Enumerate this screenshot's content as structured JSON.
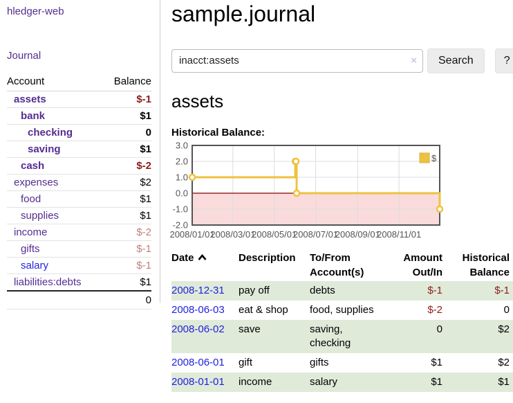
{
  "chart_data": {
    "type": "line",
    "title": "Historical Balance:",
    "step": true,
    "series": [
      {
        "name": "$",
        "color": "#edc240",
        "points": [
          [
            "2008-01-01",
            1
          ],
          [
            "2008-06-01",
            2
          ],
          [
            "2008-06-02",
            2
          ],
          [
            "2008-06-03",
            0
          ],
          [
            "2008-12-31",
            -1
          ]
        ]
      }
    ],
    "x_range": [
      "2008-01-01",
      "2008-12-31"
    ],
    "x_ticks": [
      "2008/01/01",
      "2008/03/01",
      "2008/05/01",
      "2008/07/01",
      "2008/09/01",
      "2008/11/01"
    ],
    "y_ticks": [
      {
        "v": 3,
        "label": "3.0"
      },
      {
        "v": 2,
        "label": "2.0"
      },
      {
        "v": 1,
        "label": "1.0"
      },
      {
        "v": 0,
        "label": "0.0"
      },
      {
        "v": -1,
        "label": "-1.0"
      },
      {
        "v": -2,
        "label": "-2.0"
      }
    ],
    "ylim": [
      -2,
      3
    ],
    "legend": {
      "label": "$",
      "position": "top-right"
    },
    "colors": {
      "line": "#edc240",
      "marker_fill": "#ffffff",
      "border": "#545454",
      "grid": "#dcdcdc",
      "negative_region": "#fadbdb",
      "zero_line": "#8b0000",
      "tick_text": "#545454",
      "legend_box_border": "#d6b23c"
    }
  },
  "sidebar": {
    "brand": "hledger-web",
    "journal_label": "Journal",
    "accounts": {
      "header_account": "Account",
      "header_balance": "Balance",
      "rows": [
        {
          "name": "assets",
          "depth": 1,
          "bold": true,
          "blue": false,
          "balance": "$-1",
          "style": "neg"
        },
        {
          "name": "bank",
          "depth": 2,
          "bold": true,
          "blue": false,
          "balance": "$1",
          "style": "plain"
        },
        {
          "name": "checking",
          "depth": 3,
          "bold": true,
          "blue": false,
          "balance": "0",
          "style": "plain"
        },
        {
          "name": "saving",
          "depth": 3,
          "bold": true,
          "blue": false,
          "balance": "$1",
          "style": "plain"
        },
        {
          "name": "cash",
          "depth": 2,
          "bold": true,
          "blue": false,
          "balance": "$-2",
          "style": "neg"
        },
        {
          "name": "expenses",
          "depth": 1,
          "bold": false,
          "blue": false,
          "balance": "$2",
          "style": "plain"
        },
        {
          "name": "food",
          "depth": 2,
          "bold": false,
          "blue": false,
          "balance": "$1",
          "style": "plain"
        },
        {
          "name": "supplies",
          "depth": 2,
          "bold": false,
          "blue": false,
          "balance": "$1",
          "style": "plain"
        },
        {
          "name": "income",
          "depth": 1,
          "bold": false,
          "blue": false,
          "balance": "$-2",
          "style": "dimneg"
        },
        {
          "name": "gifts",
          "depth": 2,
          "bold": false,
          "blue": false,
          "balance": "$-1",
          "style": "dimneg"
        },
        {
          "name": "salary",
          "depth": 2,
          "bold": false,
          "blue": true,
          "balance": "$-1",
          "style": "dimneg"
        },
        {
          "name": "liabilities:debts",
          "depth": 1,
          "bold": false,
          "blue": false,
          "balance": "$1",
          "style": "plain"
        }
      ],
      "total": "0"
    }
  },
  "main": {
    "title": "sample.journal",
    "search": {
      "value": "inacct:assets",
      "clear_icon": "×",
      "search_label": "Search",
      "help_label": "?"
    },
    "account_heading": "assets",
    "register": {
      "headers": {
        "date": "Date",
        "description": "Description",
        "account": "To/From Account(s)",
        "amount": "Amount Out/In",
        "balance": "Historical Balance"
      },
      "sort": {
        "column": "date",
        "direction": "ascending"
      },
      "rows": [
        {
          "date": "2008-12-31",
          "description": "pay off",
          "account_lines": [
            "debts"
          ],
          "amount": "$-1",
          "amount_neg": true,
          "balance": "$-1",
          "balance_neg": true
        },
        {
          "date": "2008-06-03",
          "description": "eat & shop",
          "account_lines": [
            "food, supplies"
          ],
          "amount": "$-2",
          "amount_neg": true,
          "balance": "0",
          "balance_neg": false
        },
        {
          "date": "2008-06-02",
          "description": "save",
          "account_lines": [
            "saving,",
            "checking"
          ],
          "amount": "0",
          "amount_neg": false,
          "balance": "$2",
          "balance_neg": false
        },
        {
          "date": "2008-06-01",
          "description": "gift",
          "account_lines": [
            "gifts"
          ],
          "amount": "$1",
          "amount_neg": false,
          "balance": "$2",
          "balance_neg": false
        },
        {
          "date": "2008-01-01",
          "description": "income",
          "account_lines": [
            "salary"
          ],
          "amount": "$1",
          "amount_neg": false,
          "balance": "$1",
          "balance_neg": false
        }
      ]
    }
  },
  "colors": {
    "link_purple": "#552d90",
    "link_blue": "#2222dd",
    "negative": "#8f1b1b",
    "negative_muted": "#bd7f7f",
    "row_green": "#dfead9",
    "accent_gold": "#edc240"
  }
}
